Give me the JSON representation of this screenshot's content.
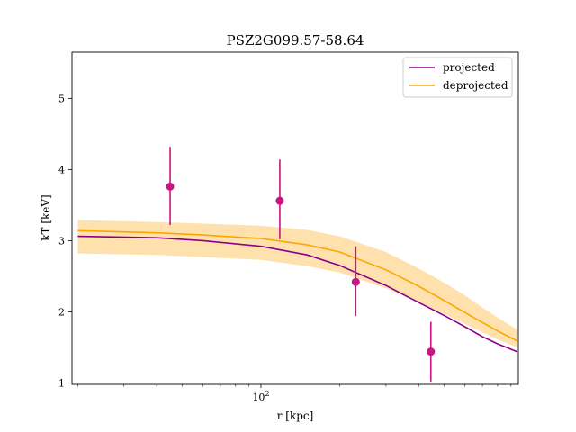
{
  "chart_data": {
    "type": "line",
    "title": "PSZ2G099.57-58.64",
    "xlabel": "r [kpc]",
    "ylabel": "kT [keV]",
    "xscale": "log",
    "xlim": [
      19,
      960
    ],
    "ylim": [
      0.98,
      5.65
    ],
    "x_major_ticks": [
      {
        "value": 100,
        "label": "10²",
        "base": "10",
        "exp": "2"
      }
    ],
    "y_ticks": [
      1,
      2,
      3,
      4,
      5
    ],
    "legend": {
      "position": "top-right"
    },
    "grid": false,
    "series": [
      {
        "name": "projected",
        "kind": "line",
        "color": "#8b008b",
        "x": [
          20,
          40,
          60,
          100,
          150,
          200,
          300,
          400,
          500,
          600,
          700,
          800,
          950
        ],
        "y": [
          3.06,
          3.04,
          3.0,
          2.92,
          2.8,
          2.65,
          2.37,
          2.13,
          1.95,
          1.79,
          1.65,
          1.55,
          1.44
        ]
      },
      {
        "name": "deprojected",
        "kind": "line",
        "color": "#ffa500",
        "x": [
          20,
          40,
          60,
          100,
          150,
          200,
          300,
          400,
          500,
          600,
          700,
          800,
          950
        ],
        "y": [
          3.14,
          3.11,
          3.08,
          3.03,
          2.94,
          2.84,
          2.59,
          2.36,
          2.16,
          1.99,
          1.85,
          1.73,
          1.59
        ],
        "band_lower": [
          2.82,
          2.8,
          2.77,
          2.73,
          2.64,
          2.55,
          2.33,
          2.13,
          1.97,
          1.83,
          1.71,
          1.61,
          1.5
        ],
        "band_upper": [
          3.29,
          3.26,
          3.24,
          3.21,
          3.15,
          3.06,
          2.84,
          2.61,
          2.41,
          2.23,
          2.06,
          1.92,
          1.75
        ],
        "band_color": "#ffdca0"
      },
      {
        "kind": "errorbar",
        "color": "#c71585",
        "points": [
          {
            "x": 45,
            "y": 3.76,
            "ylo": 3.22,
            "yhi": 4.32
          },
          {
            "x": 118,
            "y": 3.56,
            "ylo": 3.02,
            "yhi": 4.14
          },
          {
            "x": 230,
            "y": 2.42,
            "ylo": 1.94,
            "yhi": 2.92
          },
          {
            "x": 445,
            "y": 1.44,
            "ylo": 1.02,
            "yhi": 1.86
          }
        ]
      }
    ]
  }
}
